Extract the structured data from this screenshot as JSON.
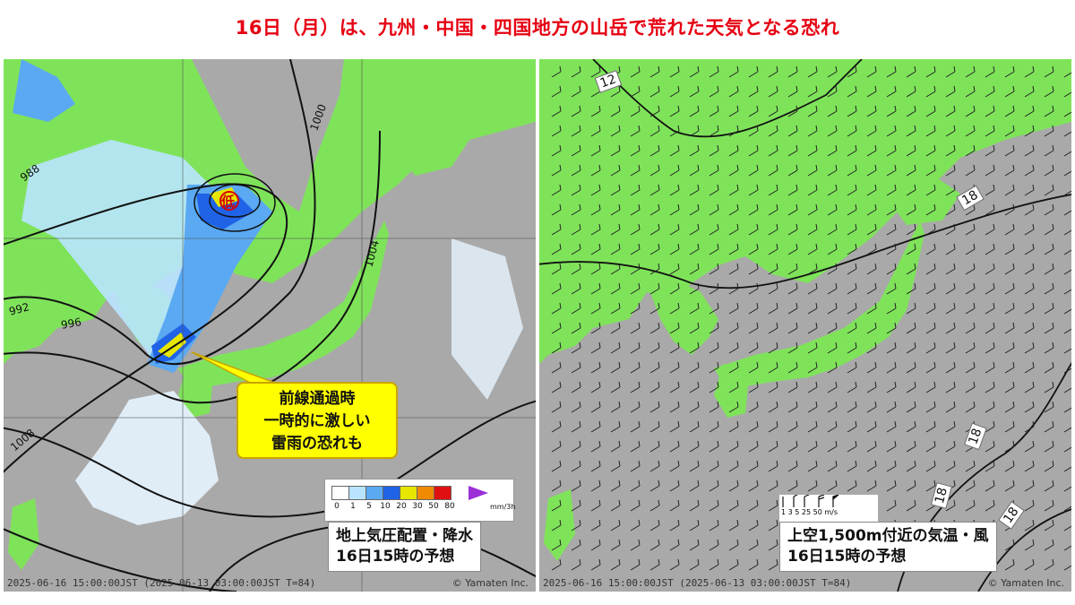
{
  "headline": "16日（月）は、九州・中国・四国地方の山岳で荒れた天気となる恐れ",
  "left_panel": {
    "title_line1": "地上気圧配置・降水",
    "title_line2": "16日15時の予想",
    "callout_line1": "前線通過時",
    "callout_line2": "一時的に激しい",
    "callout_line3": "雷雨の恐れも",
    "low_label": "低",
    "isobar_labels": [
      "988",
      "992",
      "996",
      "1000",
      "1004",
      "1008"
    ],
    "legend_ticks": [
      "0",
      "1",
      "5",
      "10",
      "20",
      "30",
      "50",
      "80"
    ],
    "legend_unit": "mm/3h",
    "legend_colors": [
      "#ffffff",
      "#b9e4ff",
      "#5aa9f2",
      "#2063e6",
      "#e6e600",
      "#f08a00",
      "#e01010"
    ],
    "footer": "2025-06-16 15:00:00JST (2025-06-13 03:00:00JST T=84)",
    "credit": "© Yamaten Inc."
  },
  "right_panel": {
    "title_line1": "上空1,500m付近の気温・風",
    "title_line2": "16日15時の予想",
    "temp_labels": [
      "12",
      "18",
      "18",
      "18",
      "18"
    ],
    "wind_legend_ticks": "1 3 5 25 50 m/s",
    "footer": "2025-06-16 15:00:00JST (2025-06-13 03:00:00JST T=84)",
    "credit": "© Yamaten Inc."
  },
  "colors": {
    "headline": "#e60012",
    "land": "#7fe35a",
    "sea": "#a9a9a9",
    "callout": "#ffff00"
  }
}
